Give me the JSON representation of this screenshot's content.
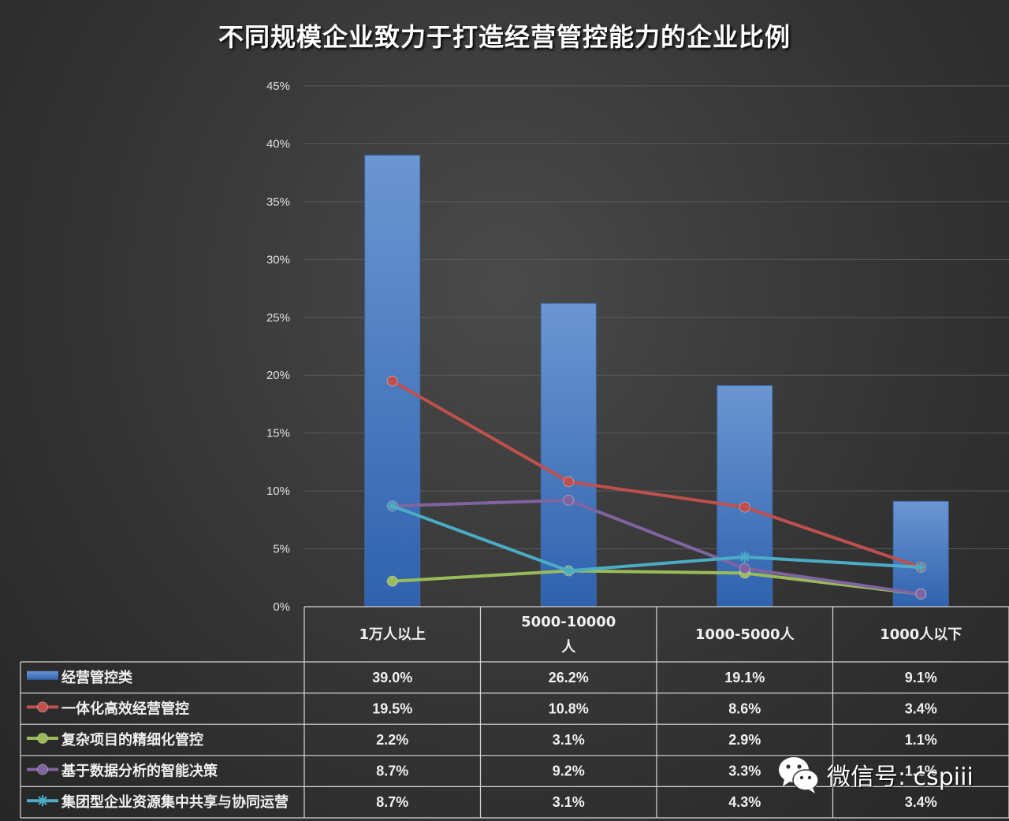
{
  "chart_data": {
    "type": "bar",
    "title": "不同规模企业致力于打造经营管控能力的企业比例",
    "categories": [
      [
        "1万人以上"
      ],
      [
        "5000-10000",
        "人"
      ],
      [
        "1000-5000人"
      ],
      [
        "1000人以下"
      ]
    ],
    "yticks": [
      "0%",
      "5%",
      "10%",
      "15%",
      "20%",
      "25%",
      "30%",
      "35%",
      "40%",
      "45%"
    ],
    "ylim": [
      0,
      45
    ],
    "grid": true,
    "legend": "data-table-below",
    "series": [
      {
        "name": "经营管控类",
        "kind": "bar",
        "color": "#4f81bd",
        "values": [
          39.0,
          26.2,
          19.1,
          9.1
        ],
        "labels": [
          "39.0%",
          "26.2%",
          "19.1%",
          "9.1%"
        ]
      },
      {
        "name": "一体化高效经营管控",
        "kind": "line",
        "marker": "circle",
        "color": "#c0504d",
        "values": [
          19.5,
          10.8,
          8.6,
          3.4
        ],
        "labels": [
          "19.5%",
          "10.8%",
          "8.6%",
          "3.4%"
        ]
      },
      {
        "name": "复杂项目的精细化管控",
        "kind": "line",
        "marker": "circle",
        "color": "#9bbb59",
        "values": [
          2.2,
          3.1,
          2.9,
          1.1
        ],
        "labels": [
          "2.2%",
          "3.1%",
          "2.9%",
          "1.1%"
        ]
      },
      {
        "name": "基于数据分析的智能决策",
        "kind": "line",
        "marker": "circle",
        "color": "#8064a2",
        "values": [
          8.7,
          9.2,
          3.3,
          1.1
        ],
        "labels": [
          "8.7%",
          "9.2%",
          "3.3%",
          "1.1%"
        ]
      },
      {
        "name": "集团型企业资源集中共享与协同运营",
        "kind": "line",
        "marker": "star",
        "color": "#4bacc6",
        "values": [
          8.7,
          3.1,
          4.3,
          3.4
        ],
        "labels": [
          "8.7%",
          "3.1%",
          "4.3%",
          "3.4%"
        ]
      }
    ]
  },
  "watermark": {
    "text": "微信号: cspiii",
    "icon": "wechat-icon"
  }
}
